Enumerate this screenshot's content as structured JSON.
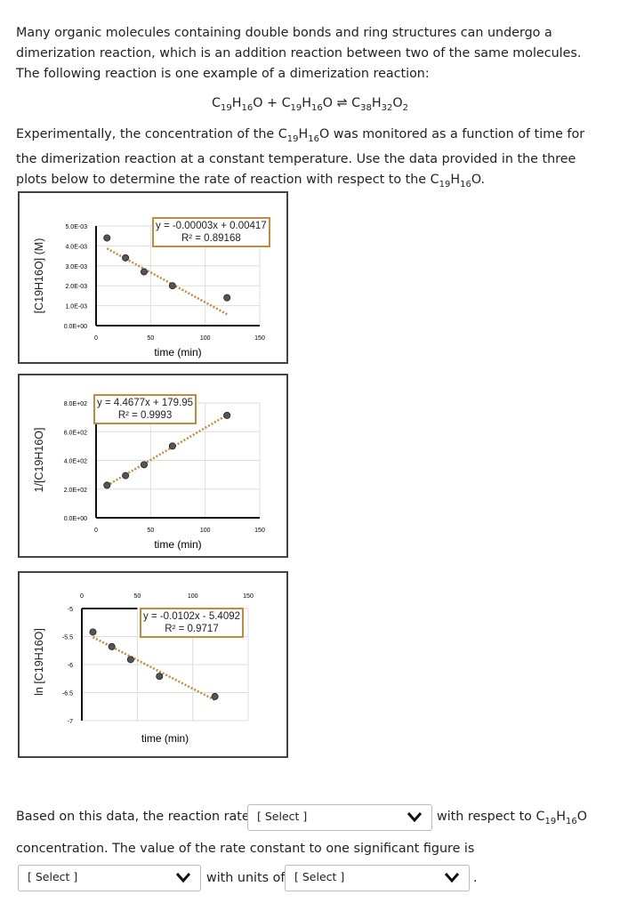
{
  "intro": "Many organic molecules containing double bonds and ring structures can undergo a dimerization reaction, which is an addition reaction between two of the same molecules. The following reaction is one example of a dimerization reaction:",
  "equation": {
    "reactant1": "C19H16O",
    "plus": "+",
    "reactant2": "C19H16O",
    "arrow": "⇌",
    "product": "C38H32O2"
  },
  "experiment": {
    "pre": "Experimentally, the concentration of the ",
    "species": "C19H16O",
    "mid": " was monitored as a function of time for the dimerization reaction at a constant temperature. Use the data provided in the three plots below to determine the rate of reaction with respect to the ",
    "end": "."
  },
  "chart_data": [
    {
      "type": "scatter",
      "ylabel": "[C19H16O] (M)",
      "xlabel": "time (min)",
      "x": [
        10,
        27,
        44,
        70,
        120
      ],
      "y": [
        0.0044,
        0.0034,
        0.0027,
        0.002,
        0.0014
      ],
      "xlim": [
        0,
        150
      ],
      "ylim": [
        0,
        0.005
      ],
      "xticks": [
        "0",
        "50",
        "100",
        "150"
      ],
      "yticks": [
        "0.0E+00",
        "1.0E-03",
        "2.0E-03",
        "3.0E-03",
        "4.0E-03",
        "5.0E-03"
      ],
      "trendline": {
        "slope": -3e-05,
        "intercept": 0.00417
      },
      "equation": "y = -0.00003x + 0.00417",
      "r2": "R² = 0.89168",
      "grid": true
    },
    {
      "type": "scatter",
      "ylabel": "1/[C19H16O]",
      "xlabel": "time (min)",
      "x": [
        10,
        27,
        44,
        70,
        120
      ],
      "y": [
        227,
        294,
        370,
        500,
        714
      ],
      "xlim": [
        0,
        150
      ],
      "ylim": [
        0,
        800
      ],
      "xticks": [
        "0",
        "50",
        "100",
        "150"
      ],
      "yticks": [
        "0.0E+00",
        "2.0E+02",
        "4.0E+02",
        "6.0E+02",
        "8.0E+02"
      ],
      "trendline": {
        "slope": 4.4677,
        "intercept": 179.95
      },
      "equation": "y = 4.4677x + 179.95",
      "r2": "R² = 0.9993",
      "grid": true
    },
    {
      "type": "scatter",
      "ylabel": "ln [C19H16O]",
      "xlabel": "time (min)",
      "x": [
        10,
        27,
        44,
        70,
        120
      ],
      "y": [
        -5.42,
        -5.68,
        -5.91,
        -6.21,
        -6.57
      ],
      "xlim": [
        0,
        150
      ],
      "ylim": [
        -7,
        -5
      ],
      "xticks": [
        "0",
        "50",
        "100",
        "150"
      ],
      "yticks": [
        "-7",
        "-6.5",
        "-6",
        "-5.5",
        "-5"
      ],
      "trendline": {
        "slope": -0.0102,
        "intercept": -5.4092
      },
      "equation": "y = -0.0102x - 5.4092",
      "r2": "R² = 0.9717",
      "grid": true
    }
  ],
  "question": {
    "line1_pre": "Based on this data, the reaction rate is",
    "line1_post": "with respect to C19H16O",
    "line2": "concentration. The value of the rate constant to one significant figure is",
    "units_label": "with units of",
    "period": "."
  },
  "selects": {
    "order": "[ Select ]",
    "rate_constant": "[ Select ]",
    "units": "[ Select ]"
  },
  "colors": {
    "trend": "#c58a3a",
    "marker": "#555555",
    "frame": "#444444"
  }
}
